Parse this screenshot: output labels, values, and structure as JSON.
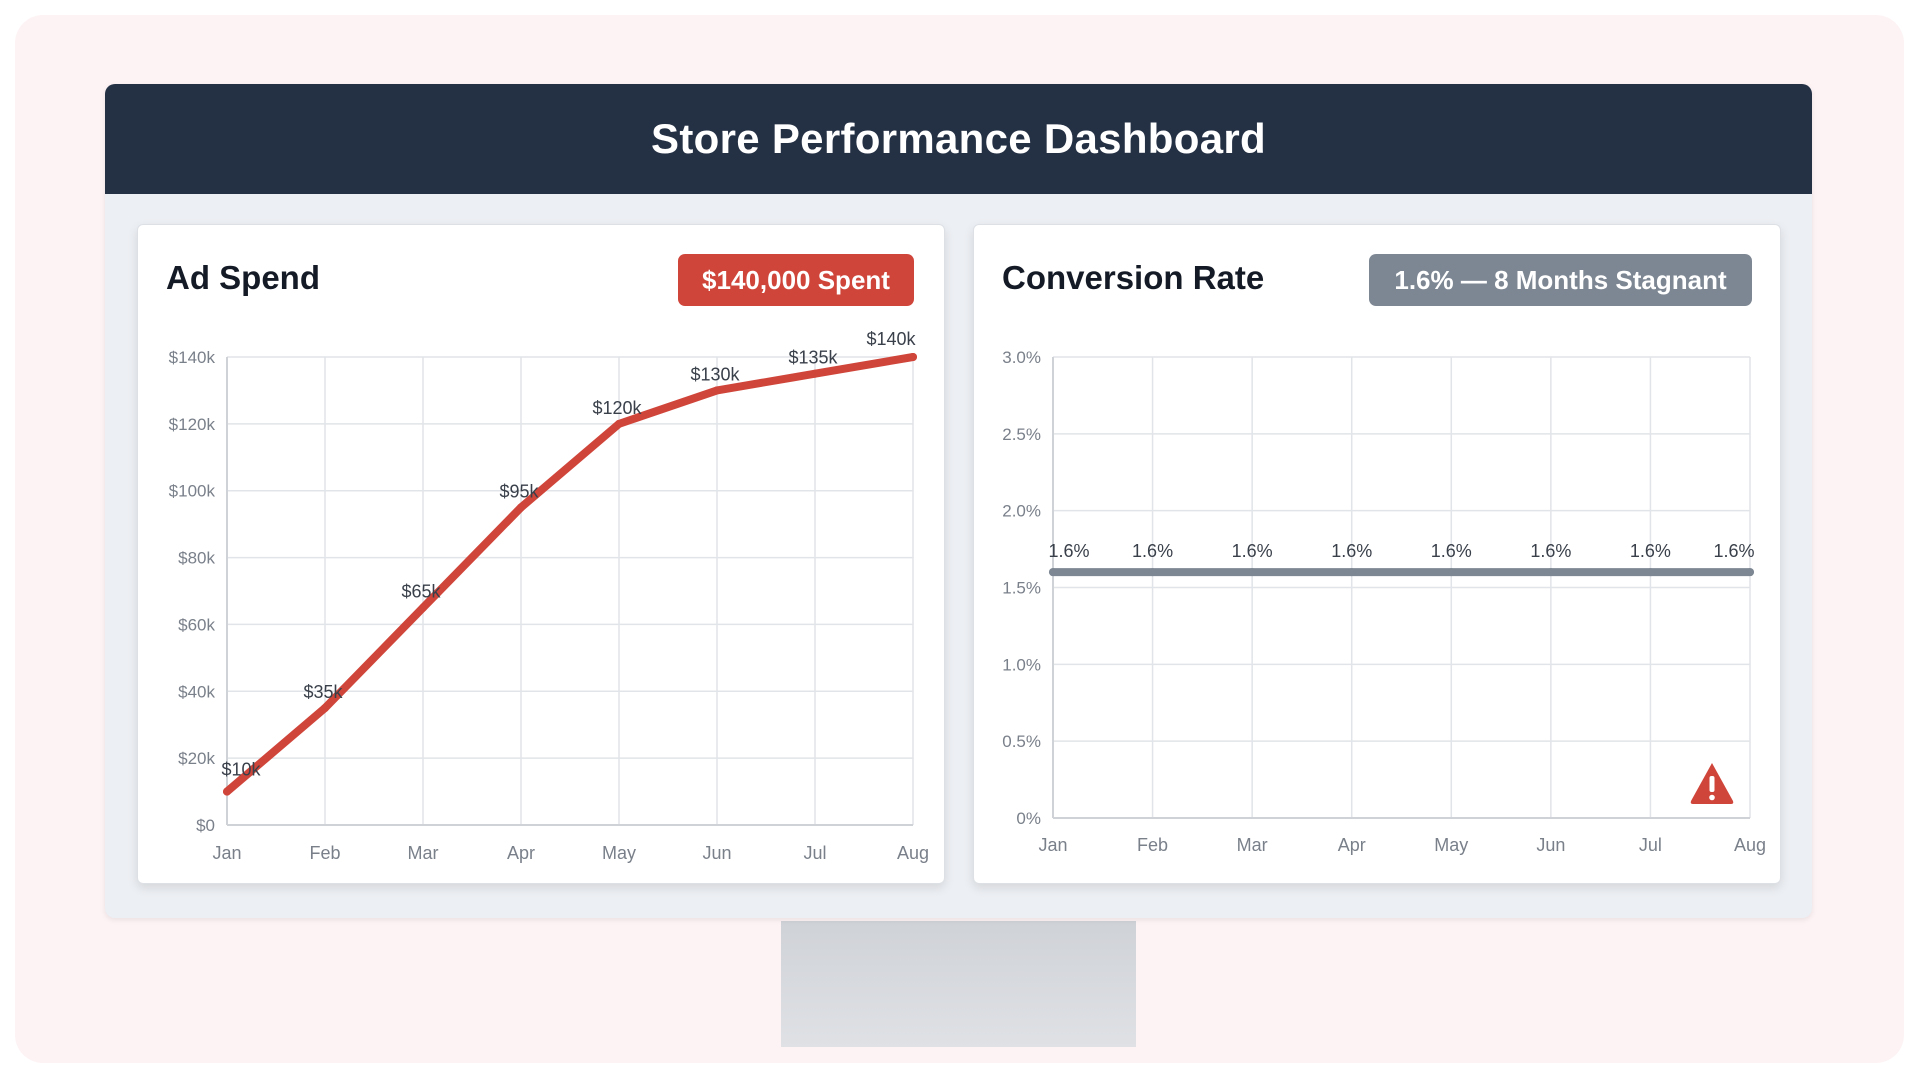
{
  "header": {
    "title": "Store Performance Dashboard"
  },
  "colors": {
    "accent_red": "#d0453a",
    "stagnant_gray": "#7d8793",
    "header_bg": "#243044"
  },
  "ad_spend": {
    "title": "Ad Spend",
    "badge": "$140,000 Spent"
  },
  "conversion": {
    "title": "Conversion Rate",
    "badge": "1.6% — 8 Months Stagnant",
    "warning_icon": "warning-triangle-icon"
  },
  "chart_data": [
    {
      "type": "line",
      "title": "Ad Spend",
      "categories": [
        "Jan",
        "Feb",
        "Mar",
        "Apr",
        "May",
        "Jun",
        "Jul",
        "Aug"
      ],
      "values": [
        10000,
        35000,
        65000,
        95000,
        120000,
        130000,
        135000,
        140000
      ],
      "labels": [
        "$10k",
        "$35k",
        "$65k",
        "$95k",
        "$120k",
        "$130k",
        "$135k",
        "$140k"
      ],
      "yticks": [
        0,
        20000,
        40000,
        60000,
        80000,
        100000,
        120000,
        140000
      ],
      "ytick_labels": [
        "$0",
        "$20k",
        "$40k",
        "$60k",
        "$80k",
        "$100k",
        "$120k",
        "$140k"
      ],
      "ylim": [
        0,
        140000
      ],
      "grid": true
    },
    {
      "type": "line",
      "title": "Conversion Rate",
      "categories": [
        "Jan",
        "Feb",
        "Mar",
        "Apr",
        "May",
        "Jun",
        "Jul",
        "Aug"
      ],
      "values": [
        1.6,
        1.6,
        1.6,
        1.6,
        1.6,
        1.6,
        1.6,
        1.6
      ],
      "labels": [
        "1.6%",
        "1.6%",
        "1.6%",
        "1.6%",
        "1.6%",
        "1.6%",
        "1.6%",
        "1.6%"
      ],
      "yticks": [
        0,
        0.5,
        1.0,
        1.5,
        2.0,
        2.5,
        3.0
      ],
      "ytick_labels": [
        "0%",
        "0.5%",
        "1.0%",
        "1.5%",
        "2.0%",
        "2.5%",
        "3.0%"
      ],
      "ylim": [
        0,
        3.0
      ],
      "grid": true
    }
  ]
}
